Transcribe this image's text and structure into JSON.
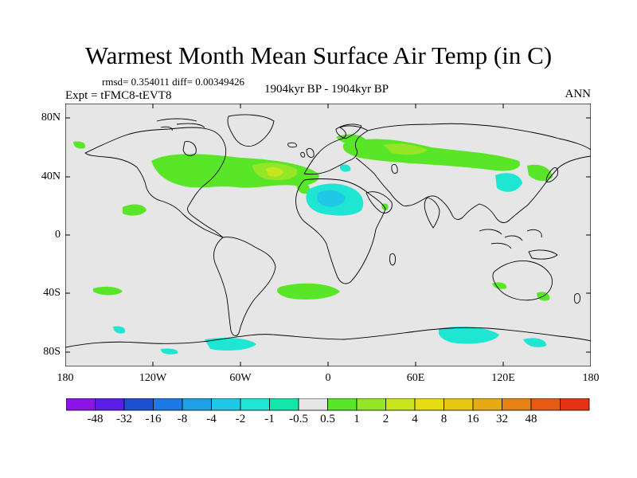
{
  "title": "Warmest Month Mean Surface Air Temp (in C)",
  "stats": "rmsd= 0.354011 diff= 0.00349426",
  "experiment": "Expt = tFMC8-tEVT8",
  "period": "1904kyr BP - 1904kyr BP",
  "season": "ANN",
  "lat_labels": [
    "80N",
    "40N",
    "0",
    "40S",
    "80S"
  ],
  "lon_labels": [
    "180",
    "120W",
    "60W",
    "0",
    "60E",
    "120E",
    "180"
  ],
  "colorbar": {
    "colors": [
      "#8c14e6",
      "#5a1ee6",
      "#1e50d2",
      "#1e78e6",
      "#1ea0e6",
      "#1ec8e6",
      "#1ee6d2",
      "#14e6aa",
      "#e6e6e6",
      "#5ae628",
      "#96e628",
      "#c8e61e",
      "#e6dc14",
      "#e6c814",
      "#e6aa14",
      "#e68214",
      "#e65a14",
      "#e63214"
    ],
    "labels": [
      "-48",
      "-32",
      "-16",
      "-8",
      "-4",
      "-2",
      "-1",
      "-0.5",
      "0.5",
      "1",
      "2",
      "4",
      "8",
      "16",
      "32",
      "48"
    ]
  },
  "fill_colors": {
    "ocean_land_neutral": "#e6e6e6",
    "warm_small": "#5ae628",
    "warm_mid": "#96e628",
    "warm_high": "#c8e61e",
    "cool_small": "#1ee6d2",
    "cool_mid": "#1ec8e6"
  }
}
